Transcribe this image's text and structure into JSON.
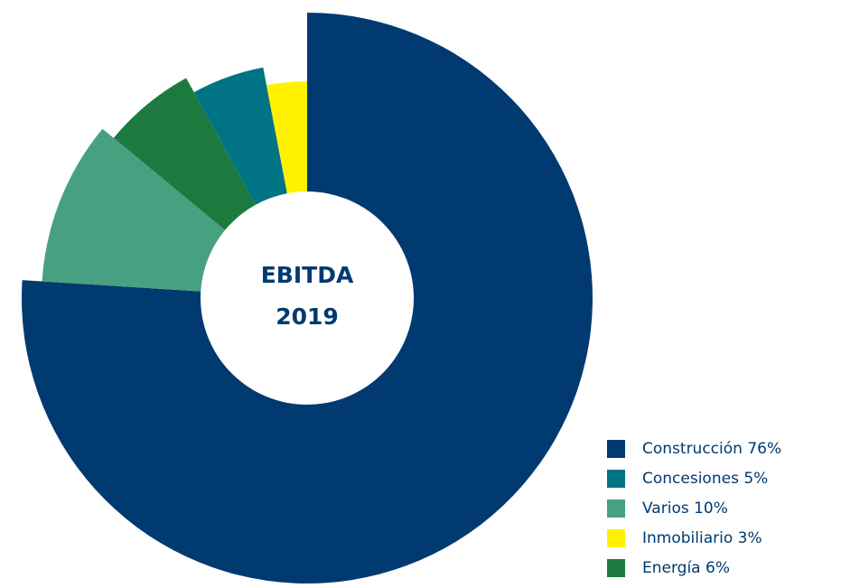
{
  "chart_data": {
    "type": "pie",
    "center_label": [
      "EBITDA",
      "2019"
    ],
    "categories": [
      "Construcción",
      "Concesiones",
      "Varios",
      "Inmobiliario",
      "Energía"
    ],
    "values": [
      76,
      5,
      10,
      3,
      6
    ],
    "value_labels": [
      "76%",
      "5%",
      "10%",
      "3%",
      "6%"
    ],
    "colors": [
      "#003a70",
      "#007484",
      "#47a07f",
      "#fff200",
      "#1d7a3f"
    ]
  }
}
